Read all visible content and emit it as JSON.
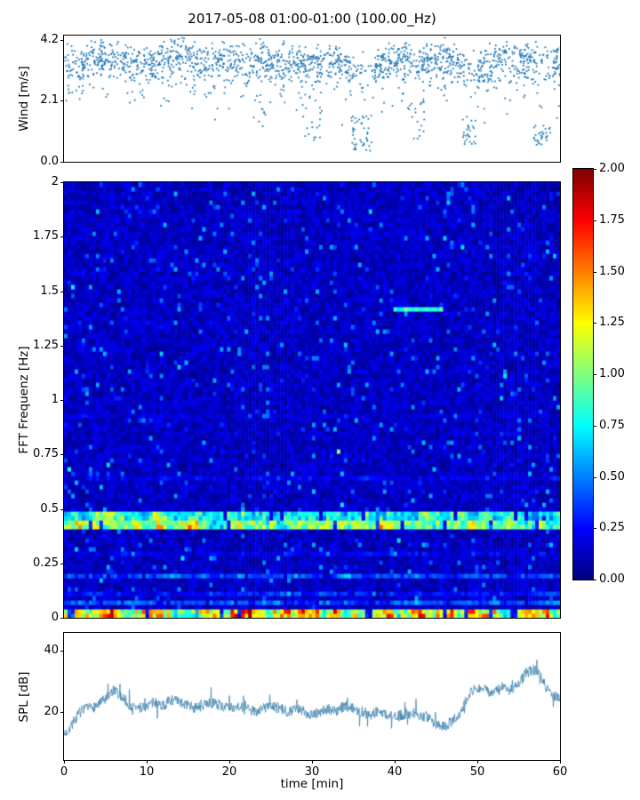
{
  "title": "2017-05-08 01:00-01:00 (100.00_Hz)",
  "chart_data": [
    {
      "type": "scatter",
      "ylabel": "Wind [m/s]",
      "xlim": [
        0,
        60
      ],
      "ylim": [
        0,
        4.35
      ],
      "yticks": [
        {
          "v": 0.0,
          "label": "0.0"
        },
        {
          "v": 2.1,
          "label": "2.1"
        },
        {
          "v": 4.2,
          "label": "4.2"
        }
      ],
      "marker_color": "#1f77b4",
      "band": {
        "x": [
          0,
          2,
          4,
          6,
          8,
          10,
          12,
          14,
          16,
          18,
          20,
          22,
          24,
          26,
          28,
          30,
          32,
          34,
          36,
          38,
          40,
          42,
          44,
          46,
          48,
          50,
          52,
          54,
          56,
          58,
          60
        ],
        "mean": [
          3.4,
          3.5,
          3.6,
          3.5,
          3.4,
          3.3,
          3.6,
          3.7,
          3.5,
          3.6,
          3.5,
          3.4,
          3.6,
          3.5,
          3.4,
          3.3,
          3.5,
          3.4,
          3.2,
          3.3,
          3.5,
          3.4,
          3.5,
          3.6,
          3.4,
          3.2,
          3.5,
          3.6,
          3.5,
          3.4,
          3.5
        ],
        "sigma": 0.3,
        "n_points": 1600
      },
      "mid_scatter": {
        "n": 240,
        "ymin": 1.2,
        "ymax": 3.0
      },
      "lulls": [
        [
          34.5,
          37.5
        ],
        [
          48.3,
          49.8
        ],
        [
          56.8,
          59.0
        ]
      ],
      "low_clusters": [
        {
          "x": 23.5,
          "halfwidth": 0.8,
          "n": 10,
          "ymin": 1.2,
          "ymax": 2.4
        },
        {
          "x": 29.8,
          "halfwidth": 1.4,
          "n": 18,
          "ymin": 0.7,
          "ymax": 2.0
        },
        {
          "x": 35.8,
          "halfwidth": 1.3,
          "n": 42,
          "ymin": 0.4,
          "ymax": 1.6
        },
        {
          "x": 42.5,
          "halfwidth": 1.0,
          "n": 18,
          "ymin": 0.6,
          "ymax": 2.2
        },
        {
          "x": 49.0,
          "halfwidth": 0.9,
          "n": 26,
          "ymin": 0.6,
          "ymax": 1.6
        },
        {
          "x": 57.8,
          "halfwidth": 1.1,
          "n": 30,
          "ymin": 0.6,
          "ymax": 1.3
        }
      ]
    },
    {
      "type": "heatmap",
      "ylabel": "FFT Frequenz [Hz]",
      "xlim": [
        0,
        60
      ],
      "ylim": [
        0,
        2
      ],
      "yticks": [
        {
          "v": 0,
          "label": "0"
        },
        {
          "v": 0.25,
          "label": "0.25"
        },
        {
          "v": 0.5,
          "label": "0.5"
        },
        {
          "v": 0.75,
          "label": "0.75"
        },
        {
          "v": 1,
          "label": "1"
        },
        {
          "v": 1.25,
          "label": "1.25"
        },
        {
          "v": 1.5,
          "label": "1.5"
        },
        {
          "v": 1.75,
          "label": "1.75"
        },
        {
          "v": 2,
          "label": "2"
        }
      ],
      "colormap": "jet",
      "value_range": [
        0,
        2
      ],
      "colorbar": {
        "ticks": [
          {
            "v": 0.0,
            "label": "0.00"
          },
          {
            "v": 0.25,
            "label": "0.25"
          },
          {
            "v": 0.5,
            "label": "0.50"
          },
          {
            "v": 0.75,
            "label": "0.75"
          },
          {
            "v": 1.0,
            "label": "1.00"
          },
          {
            "v": 1.25,
            "label": "1.25"
          },
          {
            "v": 1.5,
            "label": "1.50"
          },
          {
            "v": 1.75,
            "label": "1.75"
          },
          {
            "v": 2.0,
            "label": "2.00"
          }
        ]
      },
      "background": {
        "base": 0.03,
        "noise": 0.2,
        "speckle_prob": 0.06,
        "speckle_max": 0.45
      },
      "bands": [
        {
          "f0": 0.0,
          "f1": 0.035,
          "base": 0.7,
          "var": 1.3
        },
        {
          "f0": 0.055,
          "f1": 0.078,
          "base": 0.25,
          "var": 0.35
        },
        {
          "f0": 0.1,
          "f1": 0.118,
          "base": 0.16,
          "var": 0.3
        },
        {
          "f0": 0.185,
          "f1": 0.2,
          "base": 0.22,
          "var": 0.4
        },
        {
          "f0": 0.285,
          "f1": 0.3,
          "base": 0.1,
          "var": 0.28
        },
        {
          "f0": 0.41,
          "f1": 0.45,
          "base": 0.65,
          "var": 0.85
        },
        {
          "f0": 0.455,
          "f1": 0.485,
          "base": 0.5,
          "var": 0.75
        },
        {
          "f0": 0.64,
          "f1": 0.656,
          "base": 0.1,
          "var": 0.3
        },
        {
          "f0": 0.92,
          "f1": 0.936,
          "base": 0.06,
          "var": 0.2
        }
      ],
      "features": [
        {
          "f0": 1.41,
          "f1": 1.432,
          "t0": 40,
          "t1": 46,
          "value": 0.85
        }
      ]
    },
    {
      "type": "line",
      "ylabel": "SPL [dB]",
      "xlabel": "time [min]",
      "xlim": [
        0,
        60
      ],
      "ylim": [
        4,
        46
      ],
      "yticks": [
        {
          "v": 20,
          "label": "20"
        },
        {
          "v": 40,
          "label": "40"
        }
      ],
      "xticks": [
        {
          "v": 0,
          "label": "0"
        },
        {
          "v": 10,
          "label": "10"
        },
        {
          "v": 20,
          "label": "20"
        },
        {
          "v": 30,
          "label": "30"
        },
        {
          "v": 40,
          "label": "40"
        },
        {
          "v": 50,
          "label": "50"
        },
        {
          "v": 60,
          "label": "60"
        }
      ],
      "line_color": "#3f83ad",
      "x": [
        0,
        1,
        2,
        3,
        4,
        5,
        6,
        7,
        8,
        9,
        10,
        11,
        12,
        13,
        14,
        15,
        16,
        17,
        18,
        19,
        20,
        21,
        22,
        23,
        24,
        25,
        26,
        27,
        28,
        29,
        30,
        31,
        32,
        33,
        34,
        35,
        36,
        37,
        38,
        39,
        40,
        41,
        42,
        43,
        44,
        45,
        46,
        47,
        48,
        49,
        50,
        51,
        52,
        53,
        54,
        55,
        56,
        57,
        58,
        59,
        60
      ],
      "y": [
        12,
        16,
        20,
        21,
        22,
        24,
        27,
        25,
        22,
        21,
        22,
        23,
        22,
        24,
        23,
        22,
        21,
        22,
        23,
        22,
        21,
        22,
        21,
        20,
        21,
        22,
        21,
        20,
        21,
        20,
        19,
        20,
        21,
        20,
        22,
        21,
        20,
        19,
        20,
        19,
        18,
        19,
        20,
        19,
        18,
        16,
        15,
        17,
        20,
        26,
        28,
        27,
        26,
        28,
        27,
        29,
        33,
        34,
        30,
        26,
        24
      ],
      "noise_amp": 1.8,
      "spike_amp": 4.5
    }
  ]
}
